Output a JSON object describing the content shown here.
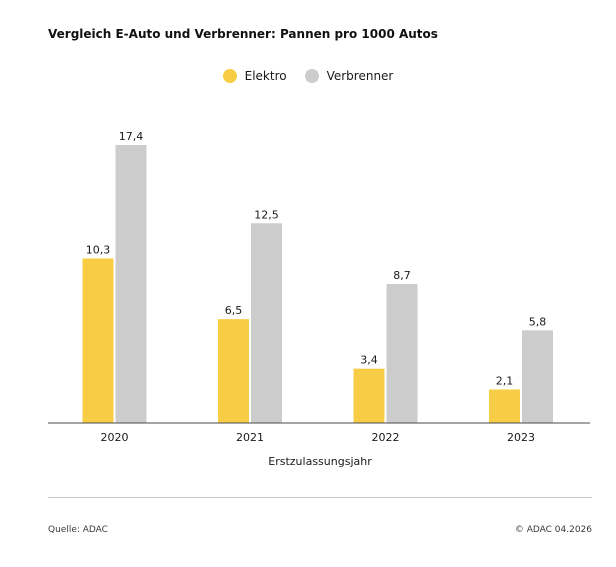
{
  "colors": {
    "elektro": "#f6cd45",
    "verbrenner": "#cccccc",
    "axis": "#4a4a4a",
    "rule": "#c8c8c8"
  },
  "chart_data": {
    "type": "bar",
    "title": "Vergleich E-Auto und Verbrenner: Pannen pro 1000 Autos",
    "xlabel": "Erstzulassungsjahr",
    "ylabel": "",
    "categories": [
      "2020",
      "2021",
      "2022",
      "2023"
    ],
    "series": [
      {
        "name": "Elektro",
        "values": [
          10.3,
          6.5,
          3.4,
          2.1
        ],
        "labels": [
          "10,3",
          "6,5",
          "3,4",
          "2,1"
        ]
      },
      {
        "name": "Verbrenner",
        "values": [
          17.4,
          12.5,
          8.7,
          5.8
        ],
        "labels": [
          "17,4",
          "12,5",
          "8,7",
          "5,8"
        ]
      }
    ],
    "ylim": [
      0,
      17.4
    ],
    "grid": false,
    "legend_position": "top-center"
  },
  "footer": {
    "source": "Quelle: ADAC",
    "copyright": "© ADAC 04.2026"
  }
}
